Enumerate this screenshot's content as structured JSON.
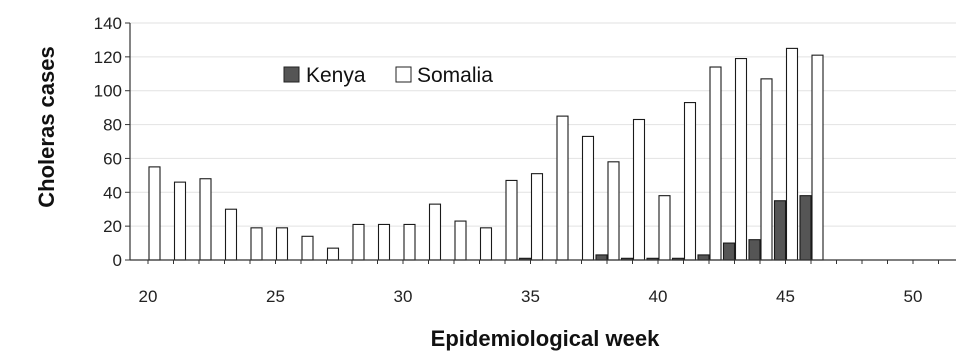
{
  "chart_data": {
    "type": "bar",
    "title": "",
    "xlabel": "Epidemiological week",
    "ylabel": "Choleras cases",
    "x_tick_labels": [
      "20",
      "25",
      "30",
      "35",
      "40",
      "45",
      "50"
    ],
    "y_tick_labels": [
      "0",
      "20",
      "40",
      "60",
      "80",
      "100",
      "120",
      "140"
    ],
    "xlim": [
      19.5,
      52
    ],
    "ylim": [
      0,
      140
    ],
    "grid": "horizontal",
    "legend_position": "top-left",
    "categories": [
      20,
      21,
      22,
      23,
      24,
      25,
      26,
      27,
      28,
      29,
      30,
      31,
      32,
      33,
      34,
      35,
      36,
      37,
      38,
      39,
      40,
      41,
      42,
      43,
      44,
      45,
      46
    ],
    "series": [
      {
        "name": "Kenya",
        "color": "#555555",
        "values": [
          0,
          0,
          0,
          0,
          0,
          0,
          0,
          0,
          0,
          0,
          0,
          0,
          0,
          0,
          0,
          1,
          0,
          0,
          3,
          1,
          1,
          1,
          3,
          10,
          12,
          35,
          38
        ]
      },
      {
        "name": "Somalia",
        "color": "#ffffff",
        "values": [
          55,
          46,
          48,
          30,
          19,
          19,
          14,
          7,
          21,
          21,
          21,
          33,
          23,
          19,
          47,
          51,
          85,
          73,
          58,
          83,
          38,
          93,
          114,
          119,
          107,
          125,
          121
        ]
      }
    ]
  }
}
